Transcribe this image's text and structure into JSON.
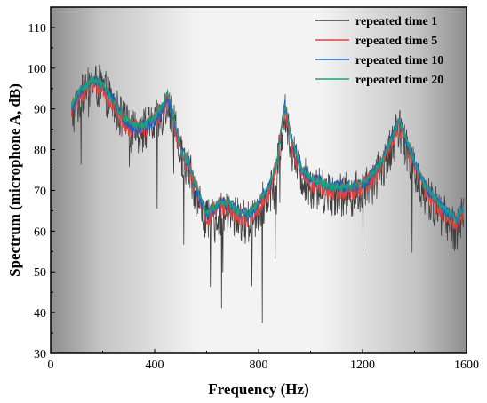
{
  "chart_data": {
    "type": "line",
    "title": "",
    "xlabel": "Frequency (Hz)",
    "ylabel": "Spectrum (microphone A, dB)",
    "xlim": [
      0,
      1600
    ],
    "ylim": [
      30,
      115
    ],
    "x_ticks": [
      0,
      400,
      800,
      1200,
      1600
    ],
    "y_ticks": [
      30,
      40,
      50,
      60,
      70,
      80,
      90,
      100,
      110
    ],
    "x_tick_labels": [
      "0",
      "400",
      "800",
      "1200",
      "1600"
    ],
    "y_tick_labels": [
      "30",
      "40",
      "50",
      "60",
      "70",
      "80",
      "90",
      "100",
      "110"
    ],
    "grid": false,
    "legend_position": "top-right",
    "background": "gray gradient, darker at left and right edges",
    "x": [
      80,
      120,
      160,
      200,
      240,
      280,
      320,
      360,
      400,
      430,
      450,
      470,
      500,
      530,
      560,
      600,
      640,
      680,
      720,
      760,
      800,
      840,
      870,
      900,
      930,
      960,
      1000,
      1040,
      1080,
      1120,
      1160,
      1200,
      1240,
      1280,
      1320,
      1340,
      1360,
      1400,
      1440,
      1480,
      1520,
      1560,
      1590
    ],
    "series": [
      {
        "name": "repeated time 1",
        "color": "#404040",
        "values": [
          88,
          93,
          96,
          95,
          91,
          87,
          84,
          85,
          86,
          89,
          92,
          87,
          79,
          76,
          69,
          62,
          64,
          64,
          63,
          62,
          65,
          69,
          75,
          89,
          80,
          74,
          71,
          70,
          69,
          69,
          69,
          70,
          72,
          76,
          82,
          85,
          82,
          75,
          69,
          66,
          63,
          60,
          64
        ]
      },
      {
        "name": "repeated time 5",
        "color": "#e8413c",
        "values": [
          90,
          94,
          96,
          95,
          91,
          87,
          85,
          85,
          87,
          90,
          93,
          88,
          79,
          76,
          70,
          63,
          66,
          66,
          64,
          63,
          66,
          70,
          76,
          90,
          81,
          75,
          72,
          71,
          70,
          70,
          70,
          71,
          73,
          77,
          83,
          86,
          83,
          76,
          70,
          67,
          64,
          62,
          65
        ]
      },
      {
        "name": "repeated time 10",
        "color": "#1f5fbf",
        "values": [
          90,
          95,
          97,
          96,
          92,
          88,
          85,
          86,
          87,
          90,
          93,
          88,
          80,
          77,
          70,
          64,
          66,
          67,
          65,
          64,
          67,
          71,
          77,
          91,
          82,
          76,
          73,
          72,
          71,
          71,
          71,
          72,
          74,
          78,
          84,
          87,
          84,
          77,
          71,
          68,
          65,
          63,
          66
        ]
      },
      {
        "name": "repeated time 20",
        "color": "#1aa37a",
        "values": [
          91,
          95,
          97,
          96,
          92,
          88,
          86,
          86,
          88,
          91,
          94,
          89,
          80,
          77,
          71,
          64,
          67,
          67,
          65,
          64,
          67,
          71,
          77,
          91,
          82,
          76,
          73,
          72,
          71,
          71,
          71,
          72,
          74,
          78,
          84,
          87,
          84,
          77,
          71,
          68,
          65,
          63,
          66
        ]
      }
    ]
  }
}
